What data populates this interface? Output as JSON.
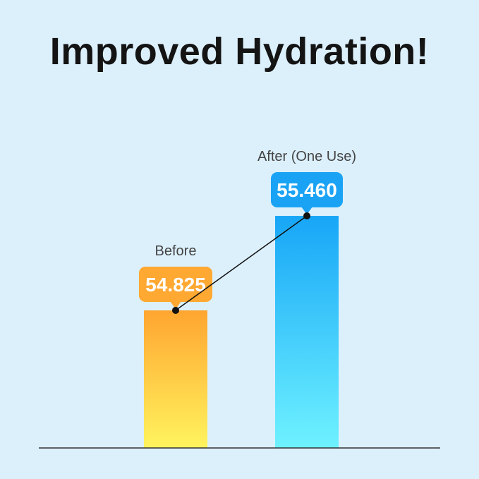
{
  "title": "Improved Hydration!",
  "chart_data": {
    "type": "bar",
    "title": "Improved Hydration!",
    "categories": [
      "Before",
      "After (One Use)"
    ],
    "values": [
      54.825,
      55.46
    ],
    "value_labels": [
      "54.825",
      "55.460"
    ],
    "ylim": [
      53.9,
      56.2
    ],
    "grid": false,
    "legend": "none",
    "colors": {
      "before_top": "#ffa530",
      "before_bottom": "#fff45e",
      "after_top": "#17a6f7",
      "after_bottom": "#6ef2ff",
      "before_callout": "#ffa832",
      "after_callout": "#1aa3f5",
      "connector": "#111111",
      "baseline": "#333333"
    }
  }
}
